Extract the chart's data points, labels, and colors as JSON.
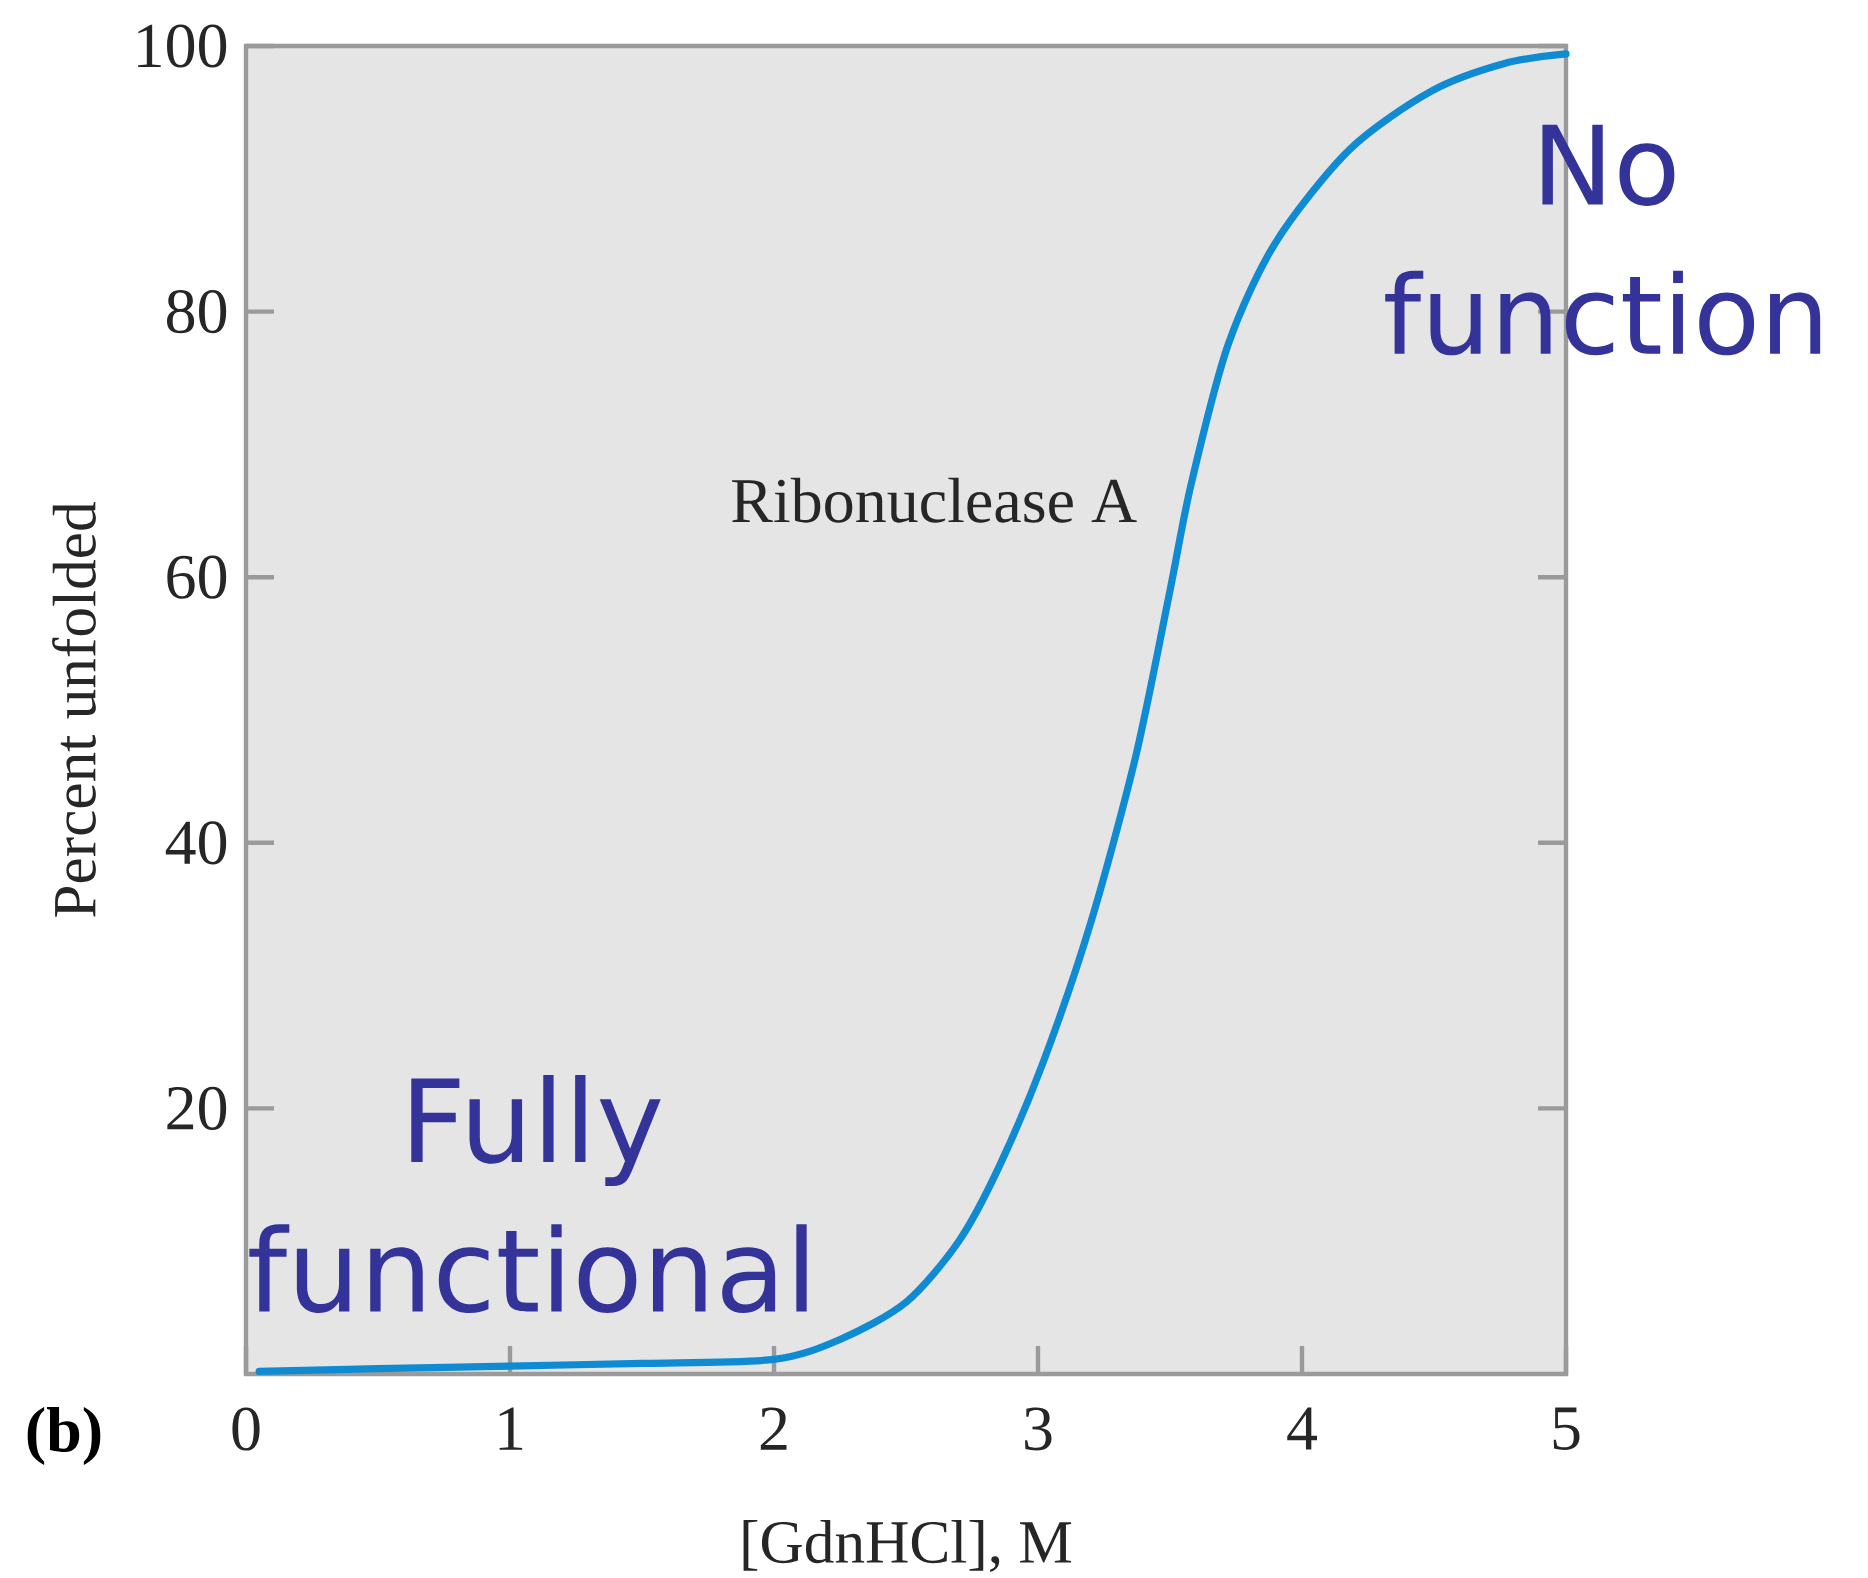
{
  "chart_data": {
    "type": "line",
    "xlabel": "[GdnHCl], M",
    "ylabel": "Percent unfolded",
    "annotations": [
      "Fully functional",
      "No function",
      "(b)"
    ],
    "x": [
      0.05,
      0.5,
      1.0,
      1.5,
      2.0,
      2.25,
      2.5,
      2.7,
      2.85,
      3.02,
      3.2,
      3.37,
      3.5,
      3.58,
      3.72,
      3.9,
      4.18,
      4.49,
      4.77,
      5.0
    ],
    "series": [
      {
        "name": "Ribonuclease A",
        "color": "#0f8bd3",
        "values": [
          0.2,
          0.4,
          0.6,
          0.8,
          1.1,
          2.6,
          5.4,
          10,
          15.5,
          23.5,
          34,
          46.5,
          59,
          67,
          77.5,
          85.2,
          92.2,
          96.6,
          98.7,
          99.4
        ]
      }
    ],
    "xlim": [
      0,
      5
    ],
    "ylim": [
      0,
      100
    ],
    "xticks": [
      0,
      1,
      2,
      3,
      4,
      5
    ],
    "yticks": [
      20,
      40,
      60,
      80,
      100
    ],
    "marker": "none",
    "line_style": "solid"
  }
}
